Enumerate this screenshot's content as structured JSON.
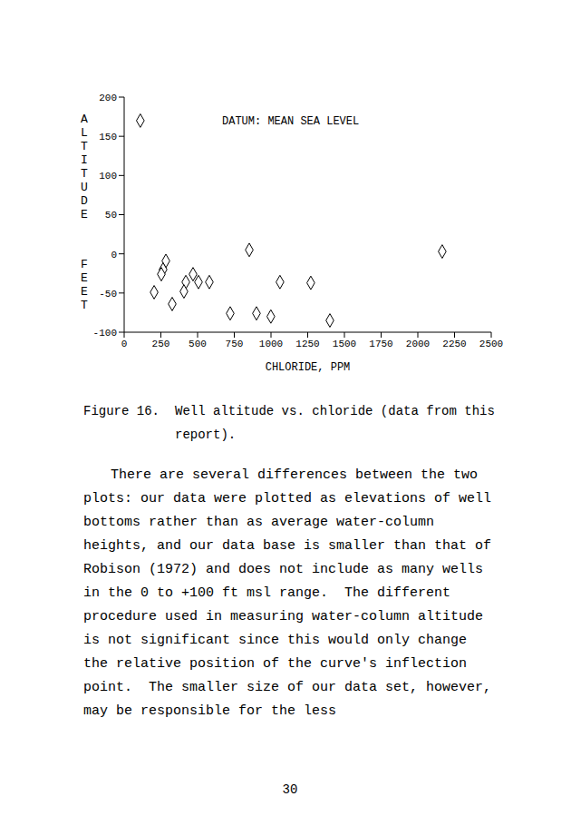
{
  "chart_data": {
    "type": "scatter",
    "title": "DATUM: MEAN SEA LEVEL",
    "x_label": "CHLORIDE, PPM",
    "y_label": "ALTITUDE FEET",
    "x": [
      110,
      852,
      2166,
      284,
      265,
      253,
      469,
      420,
      506,
      580,
      1061,
      1271,
      204,
      407,
      327,
      722,
      901,
      999,
      1401
    ],
    "values": [
      170,
      5,
      3,
      -9,
      -20,
      -26,
      -26,
      -36,
      -36,
      -36,
      -36,
      -37,
      -49,
      -48,
      -64,
      -76,
      -76,
      -80,
      -85
    ],
    "color": "#000000",
    "marker": "diamond",
    "xlim": [
      0,
      2500
    ],
    "xticks": [
      0,
      250,
      500,
      750,
      1000,
      1250,
      1500,
      1750,
      2000,
      2250,
      2500
    ],
    "ylim": [
      -100,
      200
    ],
    "yticks": [
      -100,
      -50,
      0,
      50,
      100,
      150,
      200
    ],
    "grid": false
  },
  "caption": {
    "label": "Figure 16.",
    "text": "Well altitude vs. chloride (data from this report)."
  },
  "body": "There are several differences between the two plots: our data were plotted as elevations of well bottoms rather than as average water-column heights, and our data base is smaller than that of Robison (1972) and does not include as many wells in the 0 to +100 ft msl range.  The different procedure used in measuring water-column altitude is not significant since this would only change the relative position of the curve's inflection point.  The smaller size of our data set, however, may be responsible for the less",
  "page_number": "30"
}
